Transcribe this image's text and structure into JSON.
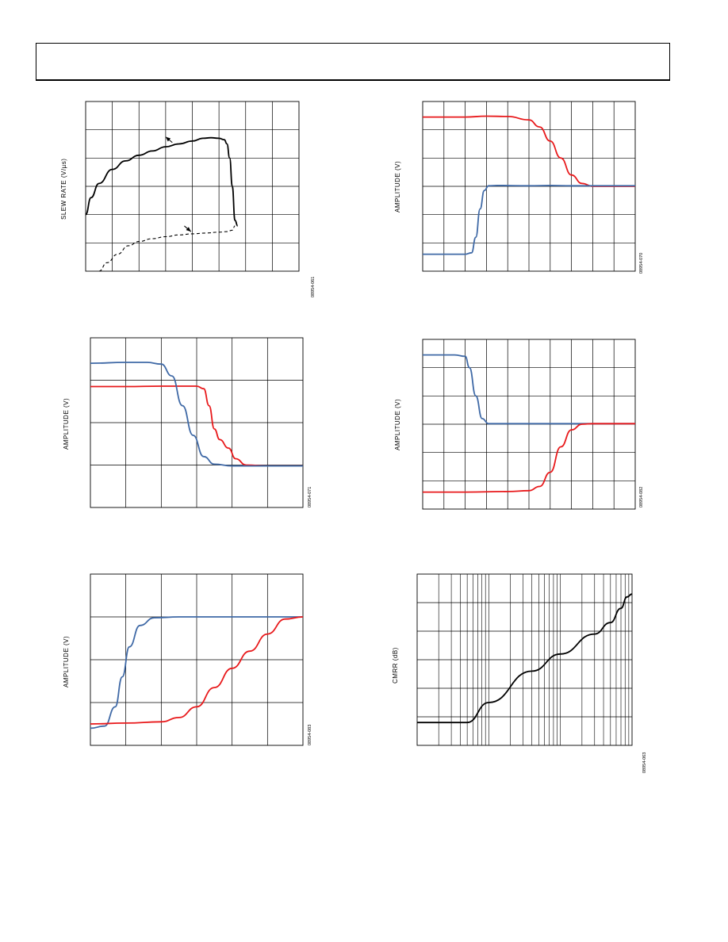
{
  "page": {
    "header": ""
  },
  "chart_data": [
    {
      "id": "c1",
      "type": "line",
      "ylabel": "SLEW RATE (V/µs)",
      "figure_id": "08954-061",
      "grid": true,
      "xgrid": 8,
      "ygrid": 6,
      "xlim": [
        0,
        8
      ],
      "ylim": [
        0,
        6
      ],
      "series": [
        {
          "color": "#000000",
          "dash": false,
          "points": [
            [
              0,
              2
            ],
            [
              0.2,
              2.6
            ],
            [
              0.5,
              3.1
            ],
            [
              1,
              3.6
            ],
            [
              1.5,
              3.9
            ],
            [
              2,
              4.1
            ],
            [
              2.5,
              4.25
            ],
            [
              3,
              4.4
            ],
            [
              3.5,
              4.5
            ],
            [
              4,
              4.6
            ],
            [
              4.4,
              4.7
            ],
            [
              4.7,
              4.72
            ],
            [
              5,
              4.7
            ],
            [
              5.2,
              4.65
            ],
            [
              5.3,
              4.5
            ],
            [
              5.4,
              4.0
            ],
            [
              5.5,
              3.0
            ],
            [
              5.6,
              1.8
            ],
            [
              5.7,
              1.6
            ]
          ]
        },
        {
          "color": "#000000",
          "dash": true,
          "points": [
            [
              0.5,
              0
            ],
            [
              0.8,
              0.3
            ],
            [
              1.2,
              0.6
            ],
            [
              1.6,
              0.9
            ],
            [
              2,
              1.05
            ],
            [
              2.5,
              1.15
            ],
            [
              3,
              1.22
            ],
            [
              3.5,
              1.28
            ],
            [
              4,
              1.32
            ],
            [
              4.5,
              1.35
            ],
            [
              5,
              1.38
            ],
            [
              5.3,
              1.4
            ],
            [
              5.5,
              1.45
            ],
            [
              5.6,
              1.6
            ]
          ]
        }
      ],
      "annotations": [
        {
          "type": "arrow",
          "from": [
            3.25,
            4.55
          ],
          "to": [
            3.0,
            4.75
          ]
        },
        {
          "type": "arrow",
          "from": [
            3.7,
            1.6
          ],
          "to": [
            3.95,
            1.4
          ]
        }
      ]
    },
    {
      "id": "c2",
      "type": "line",
      "ylabel": "AMPLITUDE (V)",
      "figure_id": "08954-070",
      "grid": true,
      "xgrid": 10,
      "ygrid": 6,
      "xlim": [
        0,
        10
      ],
      "ylim": [
        0,
        6
      ],
      "series": [
        {
          "color": "#e8191b",
          "dash": false,
          "points": [
            [
              0,
              5.45
            ],
            [
              2,
              5.45
            ],
            [
              3,
              5.48
            ],
            [
              4,
              5.47
            ],
            [
              5,
              5.35
            ],
            [
              5.5,
              5.1
            ],
            [
              6,
              4.6
            ],
            [
              6.5,
              4.0
            ],
            [
              7,
              3.4
            ],
            [
              7.5,
              3.1
            ],
            [
              8,
              3.0
            ],
            [
              10,
              3.0
            ]
          ]
        },
        {
          "color": "#3f69a6",
          "dash": false,
          "points": [
            [
              0,
              0.6
            ],
            [
              2,
              0.6
            ],
            [
              2.3,
              0.65
            ],
            [
              2.5,
              1.2
            ],
            [
              2.7,
              2.2
            ],
            [
              2.9,
              2.85
            ],
            [
              3.1,
              3.02
            ],
            [
              3.5,
              3.03
            ],
            [
              5,
              3.02
            ],
            [
              6,
              3.03
            ],
            [
              7,
              3.02
            ],
            [
              10,
              3.02
            ]
          ]
        }
      ]
    },
    {
      "id": "c3",
      "type": "line",
      "ylabel": "AMPLITUDE (V)",
      "figure_id": "08954-071",
      "grid": true,
      "xgrid": 6,
      "ygrid": 4,
      "xlim": [
        0,
        6
      ],
      "ylim": [
        0,
        4
      ],
      "series": [
        {
          "color": "#e8191b",
          "dash": false,
          "points": [
            [
              0,
              2.85
            ],
            [
              1,
              2.85
            ],
            [
              2,
              2.86
            ],
            [
              3,
              2.86
            ],
            [
              3.2,
              2.8
            ],
            [
              3.35,
              2.4
            ],
            [
              3.5,
              1.85
            ],
            [
              3.65,
              1.6
            ],
            [
              3.9,
              1.4
            ],
            [
              4.1,
              1.15
            ],
            [
              4.4,
              1.0
            ],
            [
              5,
              0.98
            ],
            [
              6,
              0.98
            ]
          ]
        },
        {
          "color": "#3f69a6",
          "dash": false,
          "points": [
            [
              0,
              3.4
            ],
            [
              1,
              3.42
            ],
            [
              1.6,
              3.42
            ],
            [
              2,
              3.38
            ],
            [
              2.3,
              3.1
            ],
            [
              2.6,
              2.4
            ],
            [
              2.9,
              1.7
            ],
            [
              3.2,
              1.2
            ],
            [
              3.5,
              1.02
            ],
            [
              4,
              0.98
            ],
            [
              6,
              0.98
            ]
          ]
        }
      ]
    },
    {
      "id": "c4",
      "type": "line",
      "ylabel": "AMPLITUDE (V)",
      "figure_id": "08954-082",
      "grid": true,
      "xgrid": 10,
      "ygrid": 6,
      "xlim": [
        0,
        10
      ],
      "ylim": [
        0,
        6
      ],
      "series": [
        {
          "color": "#3f69a6",
          "dash": false,
          "points": [
            [
              0,
              5.45
            ],
            [
              1.5,
              5.45
            ],
            [
              2,
              5.4
            ],
            [
              2.2,
              5.0
            ],
            [
              2.5,
              4.0
            ],
            [
              2.8,
              3.2
            ],
            [
              3.1,
              3.02
            ],
            [
              4,
              3.02
            ],
            [
              10,
              3.02
            ]
          ]
        },
        {
          "color": "#e8191b",
          "dash": false,
          "points": [
            [
              0,
              0.6
            ],
            [
              2,
              0.6
            ],
            [
              4,
              0.62
            ],
            [
              5,
              0.65
            ],
            [
              5.5,
              0.8
            ],
            [
              6,
              1.3
            ],
            [
              6.5,
              2.2
            ],
            [
              7,
              2.8
            ],
            [
              7.5,
              3.0
            ],
            [
              8,
              3.02
            ],
            [
              10,
              3.02
            ]
          ]
        }
      ]
    },
    {
      "id": "c5",
      "type": "line",
      "ylabel": "AMPLITUDE (V)",
      "figure_id": "08954-083",
      "grid": true,
      "xgrid": 6,
      "ygrid": 4,
      "xlim": [
        0,
        6
      ],
      "ylim": [
        0,
        4
      ],
      "series": [
        {
          "color": "#3f69a6",
          "dash": false,
          "points": [
            [
              0,
              0.4
            ],
            [
              0.4,
              0.45
            ],
            [
              0.7,
              0.9
            ],
            [
              0.9,
              1.6
            ],
            [
              1.1,
              2.3
            ],
            [
              1.4,
              2.8
            ],
            [
              1.8,
              2.98
            ],
            [
              2.5,
              3.0
            ],
            [
              6,
              3.0
            ]
          ]
        },
        {
          "color": "#e8191b",
          "dash": false,
          "points": [
            [
              0,
              0.5
            ],
            [
              1,
              0.52
            ],
            [
              2,
              0.55
            ],
            [
              2.5,
              0.65
            ],
            [
              3,
              0.9
            ],
            [
              3.5,
              1.35
            ],
            [
              4,
              1.8
            ],
            [
              4.5,
              2.2
            ],
            [
              5,
              2.6
            ],
            [
              5.5,
              2.95
            ],
            [
              6,
              3.0
            ]
          ]
        }
      ]
    },
    {
      "id": "c6",
      "type": "line",
      "ylabel": "CMRR (dB)",
      "figure_id": "08954-063",
      "grid": true,
      "xscale": "log",
      "xdecades": 3,
      "ygrid": 6,
      "xlim": [
        1,
        1000
      ],
      "ylim": [
        0,
        6
      ],
      "series": [
        {
          "color": "#000000",
          "dash": false,
          "points": [
            [
              1,
              0.8
            ],
            [
              5,
              0.8
            ],
            [
              10,
              1.5
            ],
            [
              40,
              2.6
            ],
            [
              100,
              3.2
            ],
            [
              300,
              3.9
            ],
            [
              500,
              4.3
            ],
            [
              700,
              4.8
            ],
            [
              850,
              5.2
            ],
            [
              1000,
              5.3
            ]
          ]
        }
      ]
    }
  ]
}
